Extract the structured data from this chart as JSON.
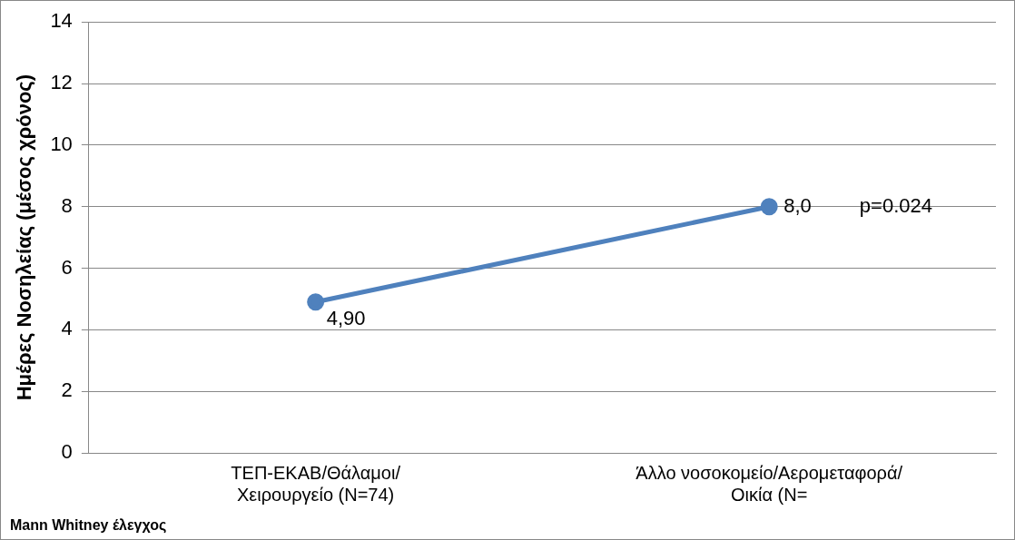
{
  "chart_data": {
    "type": "line",
    "ylabel": "Ημέρες Νοσηλείας (μέσος χρόνος)",
    "categories": [
      "ΤΕΠ-ΕΚΑΒ/Θάλαμοι/Χειρουργείο (Ν=74)",
      "Άλλο νοσοκομείο/Αερομεταφορά/Οικία (Ν="
    ],
    "series": [
      {
        "color": "#4f81bd",
        "values": [
          4.9,
          8.0
        ],
        "value_labels": [
          "4,90",
          "8,0"
        ]
      }
    ],
    "ylim": [
      0,
      14
    ],
    "yticks": [
      0,
      2,
      4,
      6,
      8,
      10,
      12,
      14
    ],
    "grid": "y",
    "legend": false,
    "marker": "circle",
    "line_style": "solid",
    "annotations": [
      "p=0.024",
      "Mann Whitney έλεγχος"
    ]
  }
}
